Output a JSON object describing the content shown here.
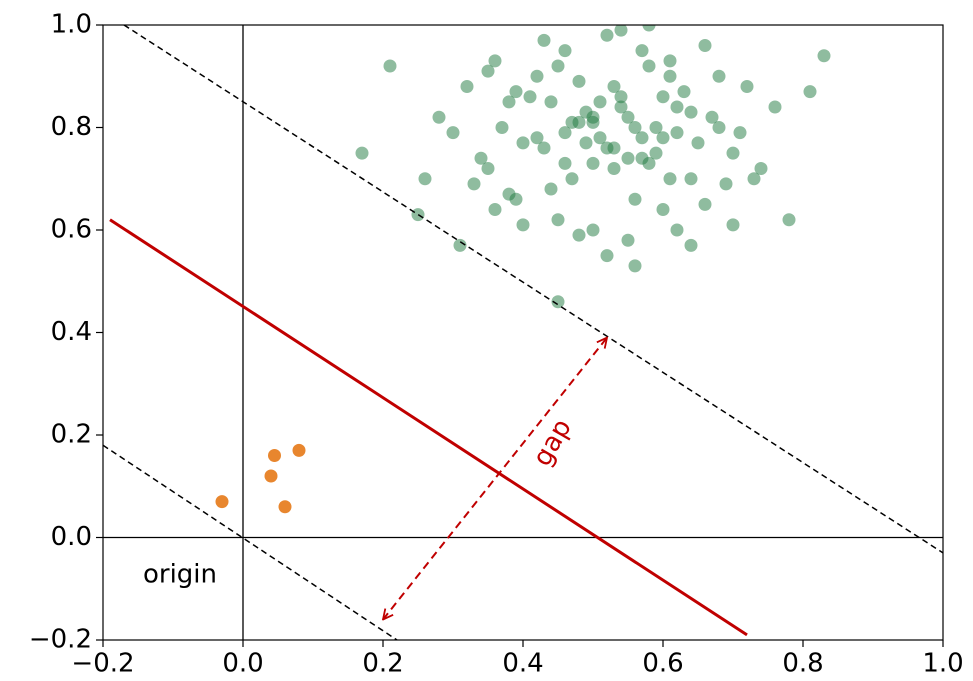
{
  "chart_data": {
    "type": "scatter",
    "xlim": [
      -0.2,
      1.0
    ],
    "ylim": [
      -0.2,
      1.0
    ],
    "xticks": [
      {
        "value": -0.2,
        "label": "−0.2"
      },
      {
        "value": 0,
        "label": "0.0"
      },
      0.2,
      0.4,
      0.6,
      0.8,
      {
        "value": 1.0,
        "label": "1.0"
      }
    ],
    "yticks": [
      {
        "value": -0.2,
        "label": "−0.2"
      },
      {
        "value": 0,
        "label": "0.0"
      },
      0.2,
      0.4,
      0.6,
      0.8,
      {
        "value": 1.0,
        "label": "1.0"
      }
    ],
    "hlines": [
      0
    ],
    "vlines": [
      0
    ],
    "series": [
      {
        "color": "#1f7a3f",
        "opacity": 0.5,
        "x": [
          0.17,
          0.21,
          0.25,
          0.31,
          0.45,
          0.83,
          0.78,
          0.81,
          0.26,
          0.28,
          0.3,
          0.32,
          0.34,
          0.36,
          0.38,
          0.4,
          0.42,
          0.44,
          0.46,
          0.48,
          0.5,
          0.52,
          0.54,
          0.56,
          0.58,
          0.6,
          0.62,
          0.64,
          0.66,
          0.68,
          0.7,
          0.72,
          0.74,
          0.76,
          0.35,
          0.37,
          0.39,
          0.41,
          0.43,
          0.45,
          0.47,
          0.49,
          0.51,
          0.53,
          0.55,
          0.57,
          0.59,
          0.61,
          0.63,
          0.65,
          0.67,
          0.69,
          0.71,
          0.42,
          0.44,
          0.46,
          0.48,
          0.5,
          0.52,
          0.54,
          0.56,
          0.58,
          0.6,
          0.62,
          0.64,
          0.47,
          0.49,
          0.51,
          0.53,
          0.55,
          0.57,
          0.59,
          0.61,
          0.45,
          0.5,
          0.55,
          0.6,
          0.52,
          0.48,
          0.56,
          0.4,
          0.38,
          0.64,
          0.66,
          0.62,
          0.54,
          0.58,
          0.43,
          0.35,
          0.33,
          0.73,
          0.7,
          0.68,
          0.5,
          0.46,
          0.53,
          0.57,
          0.61,
          0.39,
          0.36
        ],
        "values": [
          0.75,
          0.92,
          0.63,
          0.57,
          0.46,
          0.94,
          0.62,
          0.87,
          0.7,
          0.82,
          0.79,
          0.88,
          0.74,
          0.93,
          0.85,
          0.77,
          0.9,
          0.68,
          0.95,
          0.81,
          0.73,
          0.98,
          0.86,
          0.66,
          0.92,
          0.78,
          0.84,
          0.7,
          0.96,
          0.8,
          0.75,
          0.88,
          0.72,
          0.84,
          0.72,
          0.8,
          0.66,
          0.86,
          0.76,
          0.92,
          0.7,
          0.83,
          0.78,
          0.88,
          0.74,
          0.95,
          0.8,
          0.7,
          0.87,
          0.77,
          0.82,
          0.69,
          0.79,
          0.78,
          0.85,
          0.73,
          0.89,
          0.82,
          0.76,
          0.84,
          0.8,
          0.73,
          0.86,
          0.79,
          0.83,
          0.81,
          0.77,
          0.85,
          0.72,
          0.82,
          0.78,
          0.75,
          0.9,
          0.62,
          0.6,
          0.58,
          0.64,
          0.55,
          0.59,
          0.53,
          0.61,
          0.67,
          0.57,
          0.65,
          0.6,
          0.99,
          1.0,
          0.97,
          0.91,
          0.69,
          0.7,
          0.61,
          0.9,
          0.81,
          0.79,
          0.76,
          0.74,
          0.93,
          0.87,
          0.64
        ]
      },
      {
        "color": "#e8862e",
        "opacity": 1,
        "x": [
          -0.03,
          0.04,
          0.045,
          0.06,
          0.08
        ],
        "values": [
          0.07,
          0.12,
          0.16,
          0.06,
          0.17
        ]
      }
    ],
    "lines": [
      {
        "x": [
          -0.19,
          0.72
        ],
        "values": [
          0.62,
          -0.19
        ],
        "color": "#c00000",
        "style": "solid"
      },
      {
        "x": [
          -0.17,
          1.0
        ],
        "values": [
          1.0,
          -0.03
        ],
        "color": "#000000",
        "style": "dashed"
      },
      {
        "x": [
          -0.2,
          0.22
        ],
        "values": [
          0.18,
          -0.2
        ],
        "color": "#000000",
        "style": "dashed"
      },
      {
        "x": [
          0.2,
          0.52
        ],
        "values": [
          -0.16,
          0.39
        ],
        "color": "#c00000",
        "style": "dashed",
        "arrows": "both"
      }
    ],
    "annotations": [
      {
        "text": "gap"
      },
      {
        "text": "origin"
      }
    ]
  }
}
